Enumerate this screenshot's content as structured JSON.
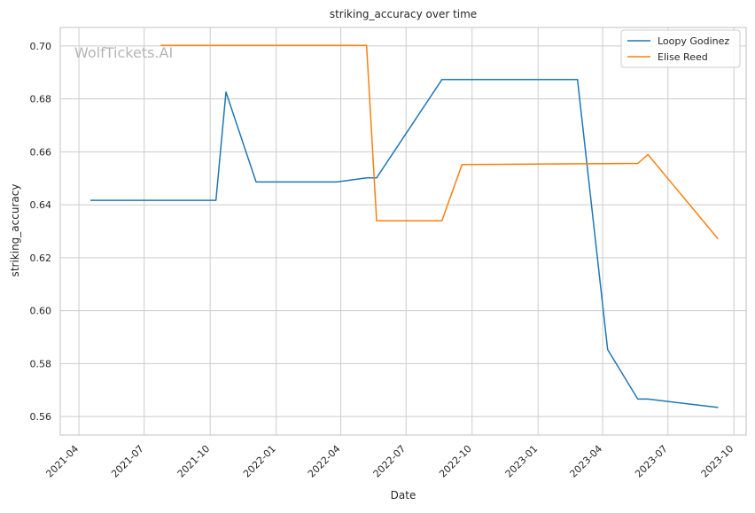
{
  "chart_data": {
    "type": "line",
    "title": "striking_accuracy over time",
    "xlabel": "Date",
    "ylabel": "striking_accuracy",
    "watermark": "WolfTickets.AI",
    "grid": true,
    "legend_position": "top-right",
    "xlim": [
      "2021-03-06",
      "2023-10-18"
    ],
    "ylim": [
      0.553,
      0.707
    ],
    "x_ticks": [
      "2021-04",
      "2021-07",
      "2021-10",
      "2022-01",
      "2022-04",
      "2022-07",
      "2022-10",
      "2023-01",
      "2023-04",
      "2023-07",
      "2023-10"
    ],
    "y_ticks": [
      "0.56",
      "0.58",
      "0.60",
      "0.62",
      "0.64",
      "0.66",
      "0.68",
      "0.70"
    ],
    "series": [
      {
        "name": "Loopy Godinez",
        "color": "#1f77b4",
        "points": [
          [
            "2021-04-17",
            0.6417
          ],
          [
            "2021-10-09",
            0.6417
          ],
          [
            "2021-10-23",
            0.6826
          ],
          [
            "2021-12-04",
            0.6486
          ],
          [
            "2022-03-26",
            0.6486
          ],
          [
            "2022-05-07",
            0.6502
          ],
          [
            "2022-05-21",
            0.6502
          ],
          [
            "2022-08-20",
            0.6873
          ],
          [
            "2023-02-25",
            0.6873
          ],
          [
            "2023-04-08",
            0.5853
          ],
          [
            "2023-05-20",
            0.5666
          ],
          [
            "2023-06-03",
            0.5666
          ],
          [
            "2023-09-09",
            0.5634
          ]
        ]
      },
      {
        "name": "Elise Reed",
        "color": "#ff7f0e",
        "points": [
          [
            "2021-07-24",
            0.7002
          ],
          [
            "2022-05-07",
            0.7002
          ],
          [
            "2022-05-21",
            0.634
          ],
          [
            "2022-08-20",
            0.634
          ],
          [
            "2022-09-17",
            0.6552
          ],
          [
            "2023-05-20",
            0.6556
          ],
          [
            "2023-06-03",
            0.659
          ],
          [
            "2023-09-09",
            0.6271
          ]
        ]
      }
    ]
  }
}
